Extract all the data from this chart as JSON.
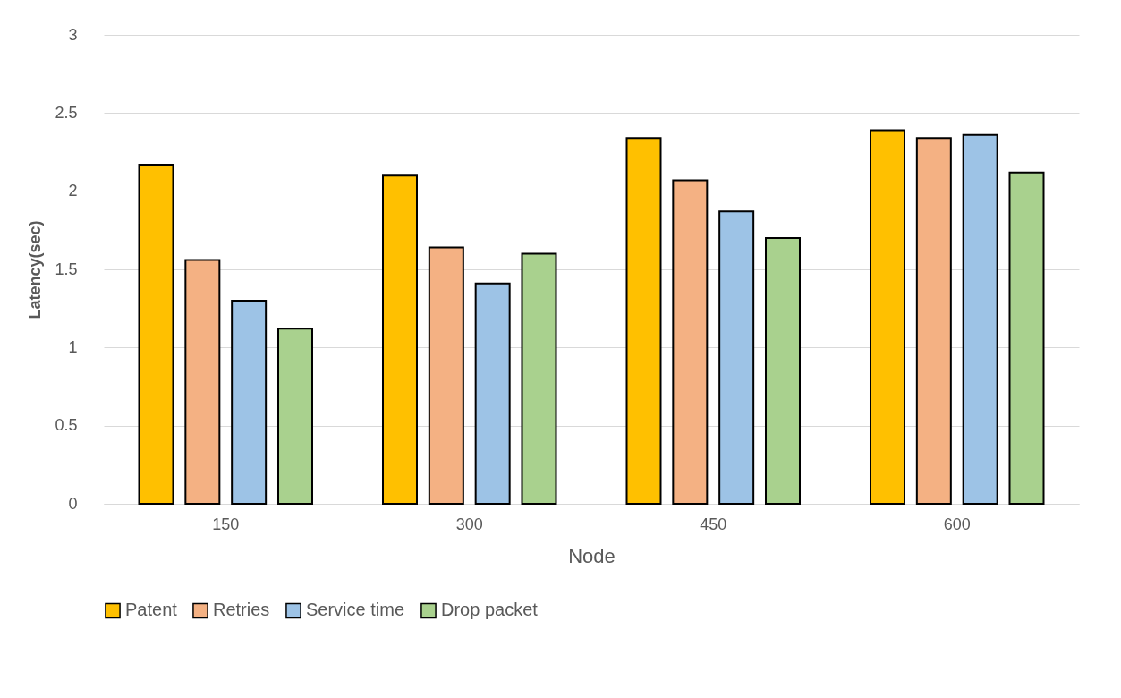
{
  "chart_data": {
    "type": "bar",
    "xlabel": "Node",
    "ylabel": "Latency(sec)",
    "categories": [
      "150",
      "300",
      "450",
      "600"
    ],
    "series": [
      {
        "name": "Patent",
        "color": "#ffc000",
        "values": [
          2.17,
          2.1,
          2.34,
          2.39
        ]
      },
      {
        "name": "Retries",
        "color": "#f4b183",
        "values": [
          1.56,
          1.64,
          2.07,
          2.34
        ]
      },
      {
        "name": "Service time",
        "color": "#9dc3e6",
        "values": [
          1.3,
          1.41,
          1.87,
          2.36
        ]
      },
      {
        "name": "Drop packet",
        "color": "#a9d18e",
        "values": [
          1.12,
          1.6,
          1.7,
          2.12
        ]
      }
    ],
    "ylim": [
      0,
      3
    ],
    "yticks": [
      0,
      0.5,
      1,
      1.5,
      2,
      2.5,
      3
    ],
    "grid": "y",
    "legend": "bottom"
  }
}
